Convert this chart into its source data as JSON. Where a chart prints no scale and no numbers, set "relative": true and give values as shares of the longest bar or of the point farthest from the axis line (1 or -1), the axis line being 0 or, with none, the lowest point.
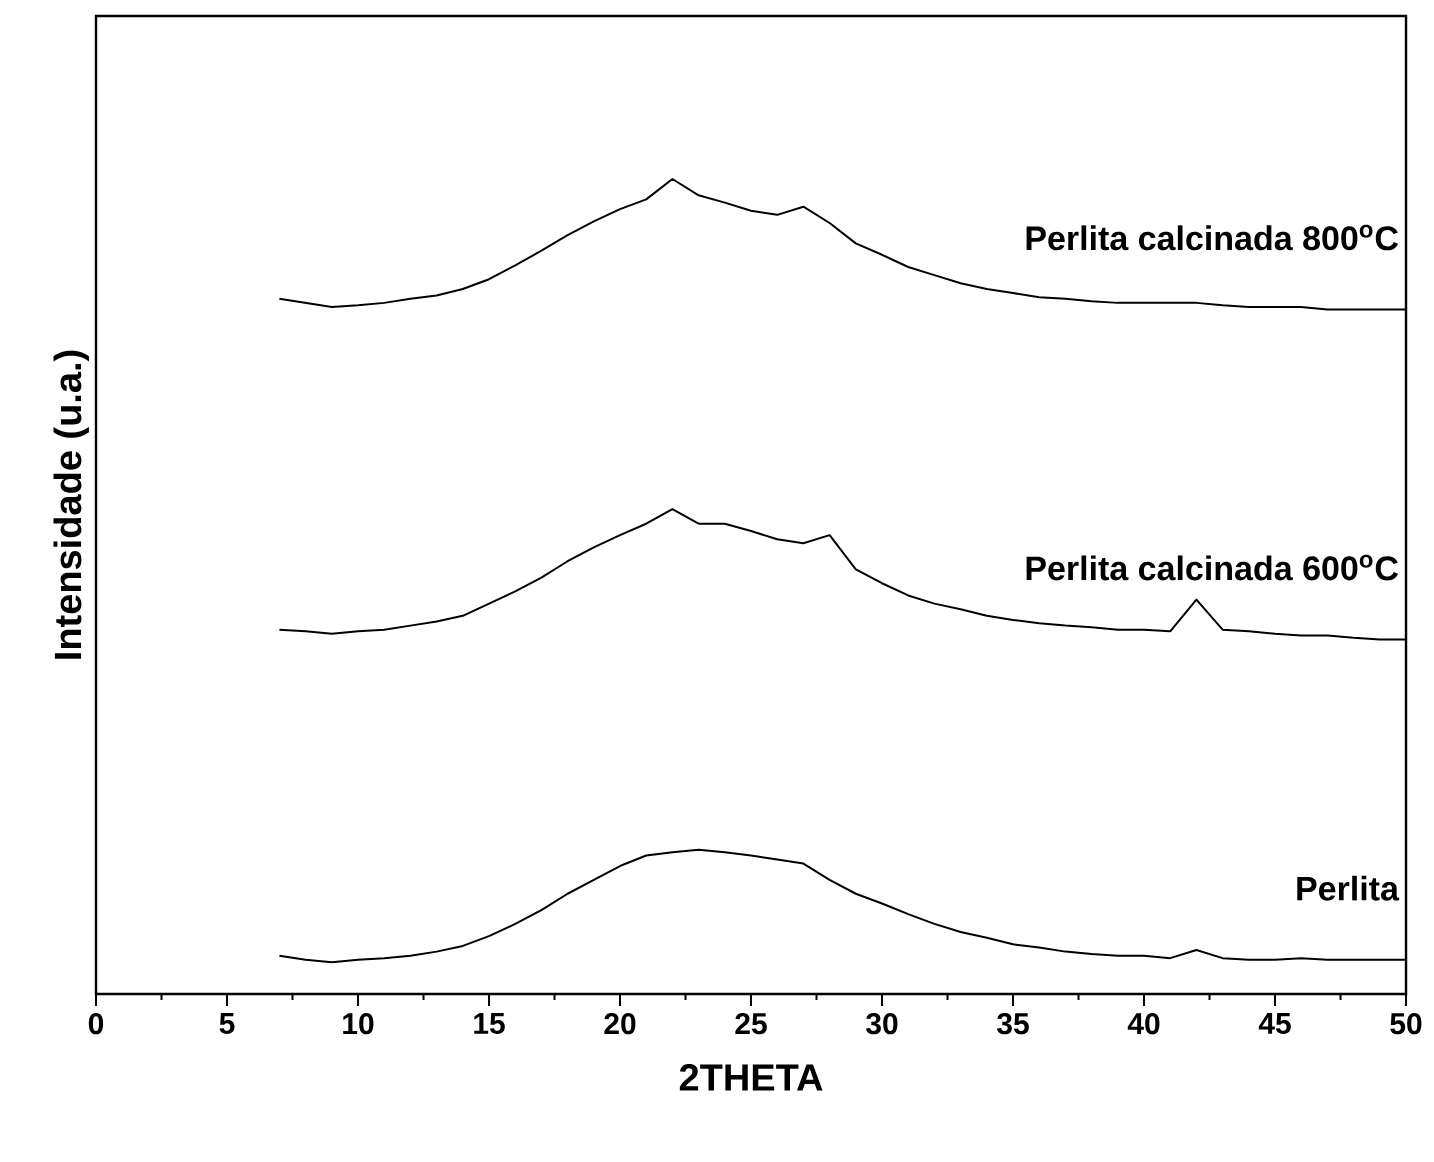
{
  "chart_data": {
    "type": "line",
    "relative": true,
    "xlabel": "2THETA",
    "ylabel": "Intensidade (u.a.)",
    "xlim": [
      0,
      50
    ],
    "xticks": [
      0,
      5,
      10,
      15,
      20,
      25,
      30,
      35,
      40,
      45,
      50
    ],
    "x": [
      7,
      8,
      9,
      10,
      11,
      12,
      13,
      14,
      15,
      16,
      17,
      18,
      19,
      20,
      21,
      22,
      23,
      24,
      25,
      26,
      27,
      28,
      29,
      30,
      31,
      32,
      33,
      34,
      35,
      36,
      37,
      38,
      39,
      40,
      41,
      42,
      43,
      44,
      45,
      46,
      47,
      48,
      49,
      50
    ],
    "series": [
      {
        "name": "Perlita",
        "color": "#000000",
        "values": [
          0.047,
          0.042,
          0.039,
          0.042,
          0.044,
          0.047,
          0.052,
          0.059,
          0.071,
          0.086,
          0.103,
          0.123,
          0.14,
          0.157,
          0.17,
          0.174,
          0.177,
          0.174,
          0.17,
          0.165,
          0.16,
          0.14,
          0.123,
          0.111,
          0.098,
          0.086,
          0.076,
          0.069,
          0.061,
          0.057,
          0.052,
          0.049,
          0.047,
          0.047,
          0.044,
          0.054,
          0.044,
          0.042,
          0.042,
          0.044,
          0.042,
          0.042,
          0.042,
          0.042
        ]
      },
      {
        "name": "Perlita calcinada 600$^{o}$C",
        "color": "#000000",
        "values": [
          0.447,
          0.445,
          0.442,
          0.445,
          0.447,
          0.452,
          0.457,
          0.464,
          0.479,
          0.494,
          0.511,
          0.531,
          0.548,
          0.563,
          0.577,
          0.595,
          0.577,
          0.577,
          0.568,
          0.558,
          0.553,
          0.563,
          0.521,
          0.504,
          0.489,
          0.479,
          0.472,
          0.464,
          0.459,
          0.455,
          0.452,
          0.45,
          0.447,
          0.447,
          0.445,
          0.484,
          0.447,
          0.445,
          0.442,
          0.44,
          0.44,
          0.437,
          0.435,
          0.435
        ]
      },
      {
        "name": "Perlita calcinada 800$^{o}$C",
        "color": "#000000",
        "values": [
          0.853,
          0.848,
          0.843,
          0.845,
          0.848,
          0.853,
          0.857,
          0.865,
          0.877,
          0.894,
          0.912,
          0.931,
          0.948,
          0.963,
          0.975,
          1,
          0.98,
          0.971,
          0.961,
          0.956,
          0.966,
          0.946,
          0.921,
          0.907,
          0.892,
          0.882,
          0.872,
          0.865,
          0.86,
          0.855,
          0.853,
          0.85,
          0.848,
          0.848,
          0.848,
          0.848,
          0.845,
          0.843,
          0.843,
          0.843,
          0.84,
          0.84,
          0.84,
          0.84
        ]
      }
    ]
  }
}
